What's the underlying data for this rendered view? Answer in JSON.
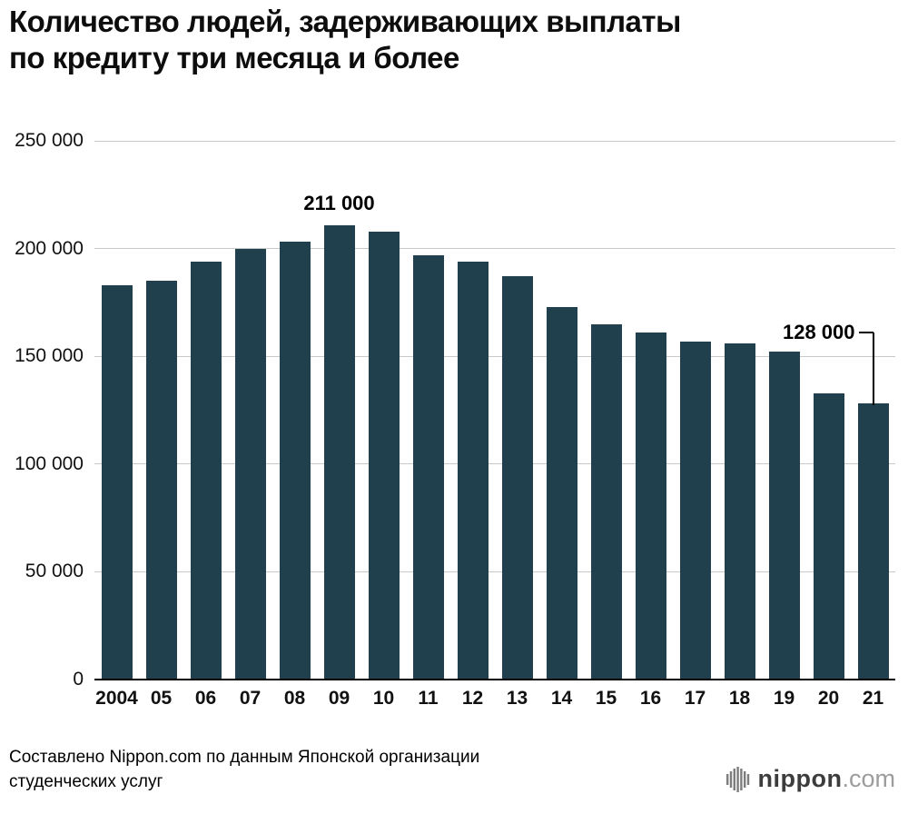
{
  "title": {
    "line1": "Количество людей, задерживающих выплаты",
    "line2": "по кредиту три месяца и более"
  },
  "chart_data": {
    "type": "bar",
    "title": "Количество людей, задерживающих выплаты по кредиту три месяца и более",
    "categories": [
      "2004",
      "05",
      "06",
      "07",
      "08",
      "09",
      "10",
      "11",
      "12",
      "13",
      "14",
      "15",
      "16",
      "17",
      "18",
      "19",
      "20",
      "21"
    ],
    "values": [
      183000,
      185000,
      194000,
      200000,
      203000,
      211000,
      208000,
      197000,
      194000,
      187000,
      173000,
      165000,
      161000,
      157000,
      156000,
      152000,
      133000,
      128000
    ],
    "ylim": [
      0,
      250000
    ],
    "yticks": [
      {
        "value": 0,
        "label": "0"
      },
      {
        "value": 50000,
        "label": "50 000"
      },
      {
        "value": 100000,
        "label": "100 000"
      },
      {
        "value": 150000,
        "label": "150 000"
      },
      {
        "value": 200000,
        "label": "200 000"
      },
      {
        "value": 250000,
        "label": "250 000"
      }
    ],
    "bar_color": "#1f404c",
    "grid_color": "#c9c9c9",
    "annotations": [
      {
        "text": "211 000",
        "index": 5,
        "placement": "above"
      },
      {
        "text": "128 000",
        "index": 17,
        "placement": "callout-left"
      }
    ],
    "legend": null,
    "grid": true
  },
  "footer": {
    "source_line1": "Составлено Nippon.com по данным Японской организации",
    "source_line2": "студенческих услуг",
    "logo_text": "nippon",
    "logo_suffix": ".com"
  }
}
